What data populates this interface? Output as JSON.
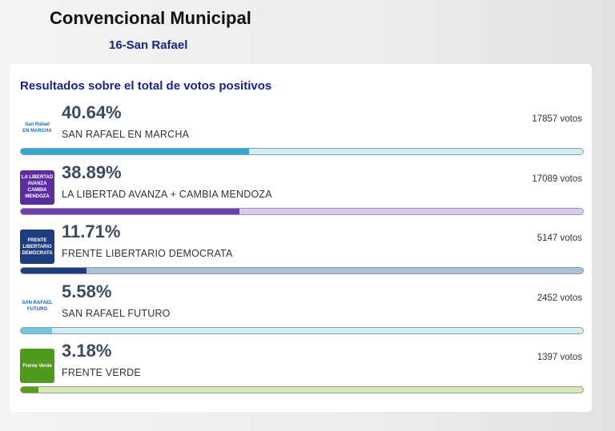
{
  "header": {
    "title": "Convencional Municipal",
    "subtitle": "16-San Rafael"
  },
  "card": {
    "title": "Resultados sobre el total de votos positivos",
    "xlim": [
      0,
      100
    ],
    "parties": [
      {
        "name": "SAN RAFAEL EN MARCHA",
        "percent": 40.64,
        "percent_label": "40.64%",
        "votes_label": "17857 votos",
        "color": "#2fa8d5",
        "track": "#c9eef6",
        "logo_bg": "#ffffff",
        "logo_fg": "#1b6fb3",
        "logo_text": [
          "San Rafael",
          "EN MARCHA"
        ]
      },
      {
        "name": "LA LIBERTAD AVANZA + CAMBIA MENDOZA",
        "percent": 38.89,
        "percent_label": "38.89%",
        "votes_label": "17089 votos",
        "color": "#6a3db4",
        "track": "#d8c9ee",
        "logo_bg": "#5b2e9e",
        "logo_fg": "#ffffff",
        "logo_text": [
          "LA LIBERTAD AVANZA",
          "CAMBIA MENDOZA"
        ]
      },
      {
        "name": "FRENTE LIBERTARIO DEMOCRATA",
        "percent": 11.71,
        "percent_label": "11.71%",
        "votes_label": "5147 votos",
        "color": "#1d3e7e",
        "track": "#aabfdc",
        "logo_bg": "#1d3e7e",
        "logo_fg": "#ffffff",
        "logo_text": [
          "FRENTE LIBERTARIO",
          "DEMÓCRATA"
        ]
      },
      {
        "name": "SAN RAFAEL FUTURO",
        "percent": 5.58,
        "percent_label": "5.58%",
        "votes_label": "2452 votos",
        "color": "#6cc6e6",
        "track": "#cfeef7",
        "logo_bg": "#ffffff",
        "logo_fg": "#1b5fa8",
        "logo_text": [
          "SAN RAFAEL",
          "FUTURO"
        ]
      },
      {
        "name": "FRENTE VERDE",
        "percent": 3.18,
        "percent_label": "3.18%",
        "votes_label": "1397 votos",
        "color": "#5a9d1e",
        "track": "#d7e9b6",
        "logo_bg": "#4f9a1c",
        "logo_fg": "#ffffff",
        "logo_text": [
          "Frente Verde"
        ]
      }
    ]
  }
}
